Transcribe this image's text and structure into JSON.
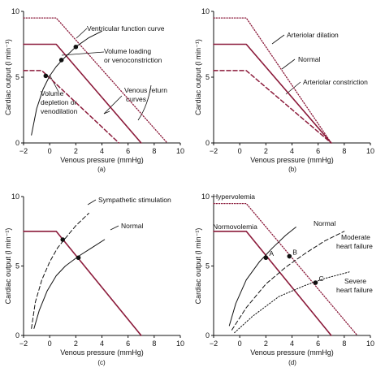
{
  "colors": {
    "return_curve": "#8b1a3a",
    "function_curve": "#111111",
    "background": "#ffffff"
  },
  "chart_data": [
    {
      "type": "line",
      "panel": "(a)",
      "xlabel": "Venous pressure (mmHg)",
      "ylabel": "Cardiac output (l min⁻¹)",
      "xlim": [
        -2,
        10
      ],
      "ylim": [
        0,
        10
      ],
      "xticks": [
        "−2",
        "0",
        "2",
        "4",
        "6",
        "8",
        "10"
      ],
      "yticks": [
        "0",
        "5",
        "10"
      ],
      "series": [
        {
          "style": "solid-maroon",
          "x": [
            -2,
            0.5,
            7
          ],
          "y": [
            7.5,
            7.5,
            0
          ]
        },
        {
          "style": "dotted-maroon",
          "x": [
            -2,
            0.5,
            9
          ],
          "y": [
            9.5,
            9.5,
            0
          ]
        },
        {
          "style": "dashed-maroon",
          "x": [
            -2,
            -0.6,
            5.3
          ],
          "y": [
            5.5,
            5.5,
            0
          ]
        },
        {
          "style": "solid-black",
          "x": [
            -1.4,
            -1,
            -0.5,
            0,
            0.5,
            1,
            2,
            3,
            4
          ],
          "y": [
            0.6,
            2.6,
            4.1,
            5.1,
            5.8,
            6.35,
            7.3,
            8.0,
            8.5
          ]
        }
      ],
      "points": [
        {
          "x": 2,
          "y": 7.3
        },
        {
          "x": 0.9,
          "y": 6.3
        },
        {
          "x": -0.3,
          "y": 5.1
        }
      ],
      "annotations": [
        "Ventricular function curve",
        "Volume loading",
        "or venoconstriction",
        "Volume",
        "depletion or",
        "venodilation",
        "Venous return",
        "curves"
      ],
      "caption": "(a)"
    },
    {
      "type": "line",
      "panel": "(b)",
      "xlabel": "Venous pressure (mmHg)",
      "ylabel": "Cardiac output (l min⁻¹)",
      "xlim": [
        -2,
        10
      ],
      "ylim": [
        0,
        10
      ],
      "xticks": [
        "−2",
        "0",
        "2",
        "4",
        "6",
        "8",
        "10"
      ],
      "yticks": [
        "0",
        "5",
        "10"
      ],
      "series": [
        {
          "style": "dotted-maroon",
          "x": [
            -2,
            0.5,
            7
          ],
          "y": [
            9.5,
            9.5,
            0
          ]
        },
        {
          "style": "solid-maroon",
          "x": [
            -2,
            0.5,
            7
          ],
          "y": [
            7.5,
            7.5,
            0
          ]
        },
        {
          "style": "dashed-maroon",
          "x": [
            -2,
            0.5,
            7
          ],
          "y": [
            5.5,
            5.5,
            0
          ]
        }
      ],
      "annotations": [
        "Arteriolar dilation",
        "Normal",
        "Arteriolar constriction"
      ],
      "caption": "(b)"
    },
    {
      "type": "line",
      "panel": "(c)",
      "xlabel": "Venous pressure (mmHg)",
      "ylabel": "Cardiac output (l min⁻¹)",
      "xlim": [
        -2,
        10
      ],
      "ylim": [
        0,
        10
      ],
      "xticks": [
        "−2",
        "0",
        "2",
        "4",
        "6",
        "8",
        "10"
      ],
      "yticks": [
        "0",
        "5",
        "10"
      ],
      "series": [
        {
          "style": "solid-maroon",
          "x": [
            -2,
            0.5,
            7
          ],
          "y": [
            7.5,
            7.5,
            0
          ]
        },
        {
          "style": "solid-black",
          "x": [
            -1.2,
            -0.8,
            -0.2,
            0.5,
            1.2,
            2.2,
            3.2,
            4.2
          ],
          "y": [
            0.5,
            1.8,
            3.2,
            4.3,
            5.0,
            5.7,
            6.3,
            6.9
          ]
        },
        {
          "style": "dashed-black",
          "x": [
            -1.4,
            -1.1,
            -0.6,
            0,
            0.6,
            1.2,
            2,
            3
          ],
          "y": [
            0.5,
            2.4,
            4.0,
            5.3,
            6.3,
            7.0,
            7.9,
            8.8
          ]
        }
      ],
      "points": [
        {
          "x": 1.0,
          "y": 6.9
        },
        {
          "x": 2.2,
          "y": 5.6
        }
      ],
      "annotations": [
        "Sympathetic stimulation",
        "Normal"
      ],
      "caption": "(c)"
    },
    {
      "type": "line",
      "panel": "(d)",
      "xlabel": "Venous pressure (mmHg)",
      "ylabel": "Cardiac output (l min⁻¹)",
      "xlim": [
        -2,
        10
      ],
      "ylim": [
        0,
        10
      ],
      "xticks": [
        "−2",
        "0",
        "2",
        "4",
        "6",
        "8",
        "10"
      ],
      "yticks": [
        "0",
        "5",
        "10"
      ],
      "series": [
        {
          "style": "solid-maroon",
          "x": [
            -2,
            0.5,
            7
          ],
          "y": [
            7.5,
            7.5,
            0
          ]
        },
        {
          "style": "dotted-maroon",
          "x": [
            -2,
            0.5,
            9
          ],
          "y": [
            9.5,
            9.5,
            0
          ]
        },
        {
          "style": "solid-black",
          "x": [
            -0.8,
            -0.3,
            0.5,
            1.5,
            2.5,
            3.5,
            4.3
          ],
          "y": [
            0.7,
            2.3,
            4.0,
            5.3,
            6.3,
            7.2,
            7.8
          ]
        },
        {
          "style": "dashed-black",
          "x": [
            -0.6,
            0.5,
            2,
            3.5,
            5,
            6.5,
            8
          ],
          "y": [
            0.4,
            2.0,
            3.7,
            4.9,
            5.9,
            6.8,
            7.5
          ]
        },
        {
          "style": "dotted-black",
          "x": [
            -0.4,
            1,
            3,
            5,
            6.5,
            8.5
          ],
          "y": [
            0.2,
            1.4,
            2.8,
            3.6,
            4.1,
            4.6
          ]
        }
      ],
      "points": [
        {
          "label": "A",
          "x": 2.0,
          "y": 5.6
        },
        {
          "label": "B",
          "x": 3.8,
          "y": 5.7
        },
        {
          "label": "C",
          "x": 5.8,
          "y": 3.8
        }
      ],
      "annotations": [
        "Hypervolemia",
        "Normovolemia",
        "Normal",
        "Moderate",
        "heart failure",
        "Severe",
        "heart failure"
      ],
      "caption": "(d)"
    }
  ]
}
